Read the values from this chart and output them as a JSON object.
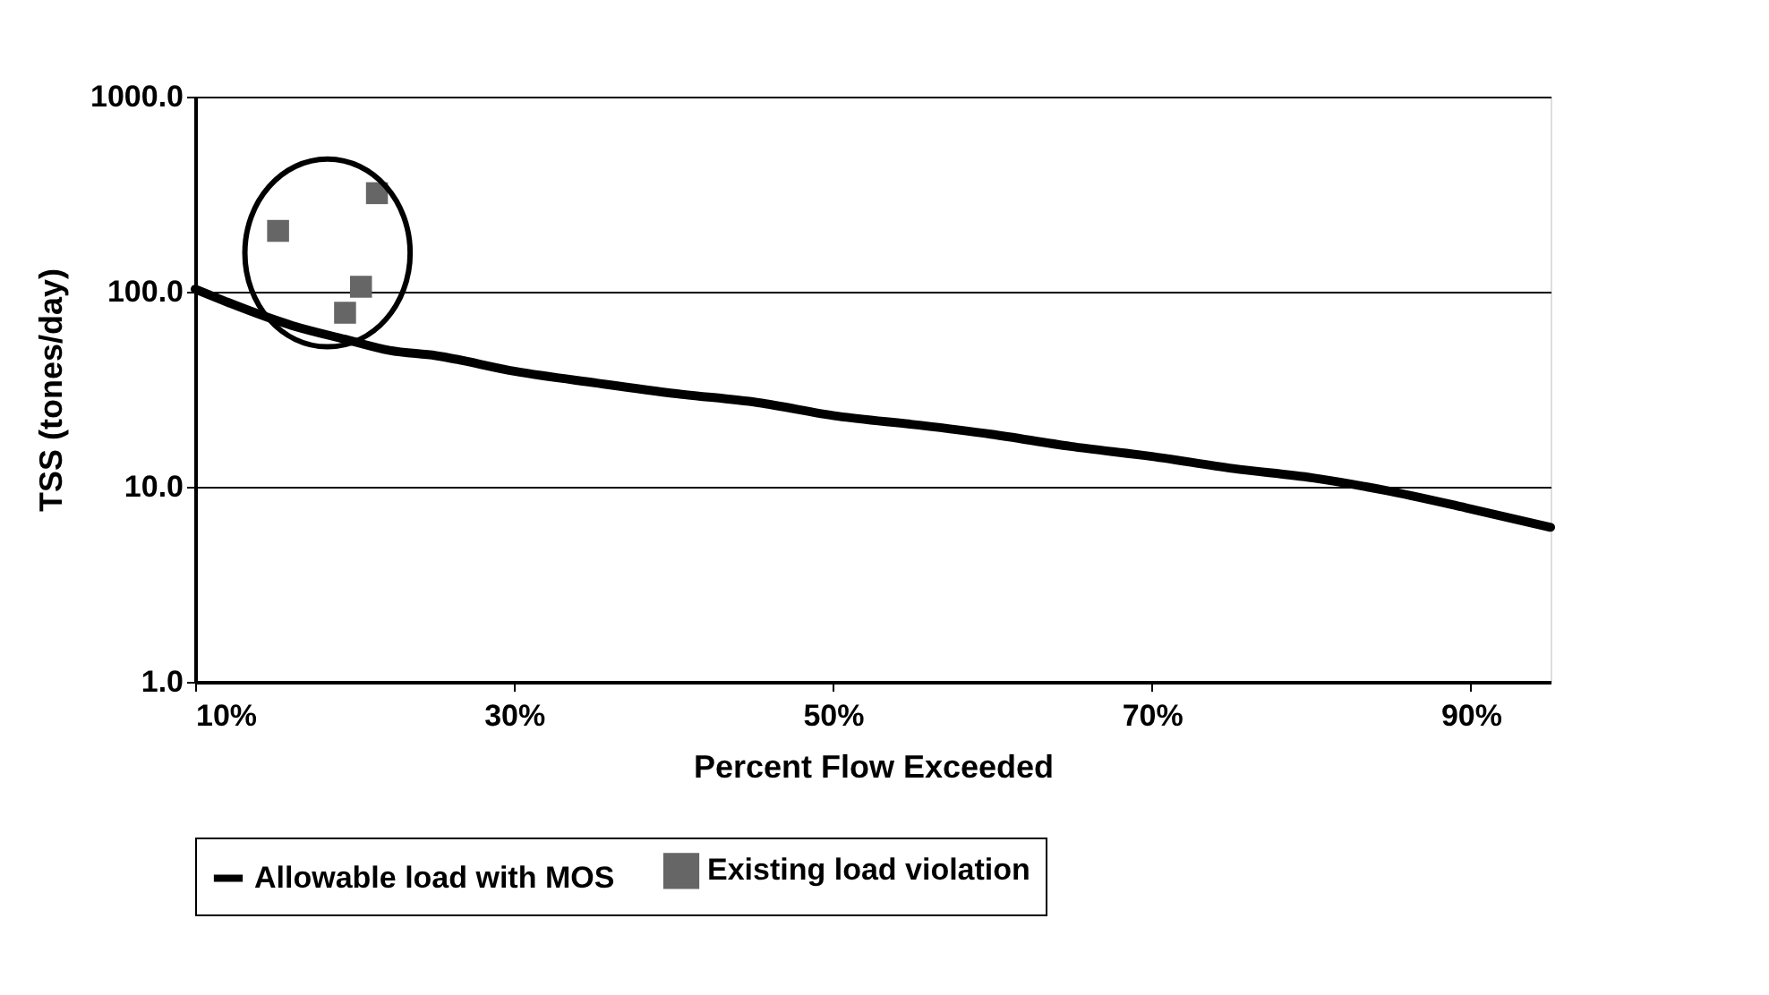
{
  "chart_data": {
    "type": "line",
    "xlabel": "Percent Flow Exceeded",
    "ylabel": "TSS (tones/day)",
    "log": "y",
    "grid": "y",
    "legend": "bottom",
    "xlim": [
      10,
      95
    ],
    "ylim": [
      1,
      1000
    ],
    "xticks": [
      {
        "value": 10,
        "label": "10%"
      },
      {
        "value": 30,
        "label": "30%"
      },
      {
        "value": 50,
        "label": "50%"
      },
      {
        "value": 70,
        "label": "70%"
      },
      {
        "value": 90,
        "label": "90%"
      }
    ],
    "yticks": [
      {
        "value": 1,
        "label": "1.0"
      },
      {
        "value": 10,
        "label": "10.0"
      },
      {
        "value": 100,
        "label": "100.0"
      },
      {
        "value": 1000,
        "label": "1000.0"
      }
    ],
    "series": [
      {
        "name": "Allowable load with MOS",
        "color": "#000000",
        "marker": "none",
        "x": [
          10,
          16.1,
          19.4,
          22.2,
          25.1,
          30.1,
          35.2,
          40.2,
          45.3,
          50.3,
          55.4,
          59.9,
          64.9,
          70,
          75.1,
          80.1,
          84.6,
          89.7,
          95
        ],
        "values": [
          103,
          67,
          57,
          50,
          47,
          39,
          34,
          30,
          27,
          23,
          20.7,
          18.6,
          16.1,
          14.3,
          12.4,
          11.1,
          9.6,
          7.8,
          6.2
        ]
      },
      {
        "name": "Existing load violation",
        "type": "scatter",
        "color": "#666666",
        "marker": "square",
        "x": [
          15.2,
          19.4,
          20.4,
          21.4
        ],
        "values": [
          205,
          78,
          106,
          320
        ]
      }
    ]
  }
}
